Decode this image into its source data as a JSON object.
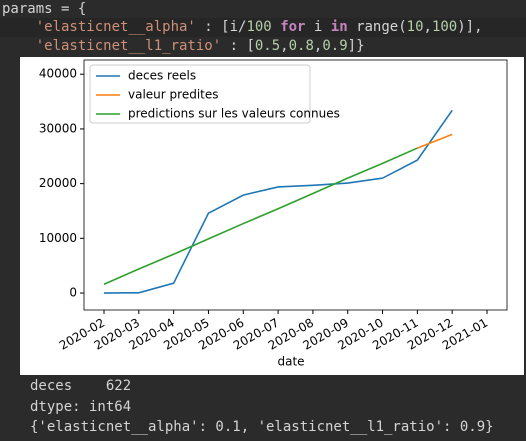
{
  "code": [
    "params = {",
    "    'elasticnet__alpha' : [i/100 for i in range(10,100)],",
    "    'elasticnet__l1_ratio' : [0.5,0.8,0.9]}"
  ],
  "chart_data": {
    "type": "line",
    "xlabel": "date",
    "x": [
      "2020-02",
      "2020-03",
      "2020-04",
      "2020-05",
      "2020-06",
      "2020-07",
      "2020-08",
      "2020-09",
      "2020-10",
      "2020-11",
      "2020-12"
    ],
    "series": [
      {
        "name": "deces reels",
        "color": "#1f77b4",
        "values": [
          0,
          50,
          1800,
          14600,
          17900,
          19400,
          19700,
          20100,
          21000,
          24300,
          33400
        ]
      },
      {
        "name": "valeur predites",
        "color": "#ff7f0e",
        "values": [
          null,
          null,
          null,
          null,
          null,
          null,
          null,
          null,
          null,
          26500,
          29000
        ]
      },
      {
        "name": "predictions sur les valeurs connues",
        "color": "#2ca02c",
        "values": [
          1600,
          4400,
          7100,
          9900,
          12700,
          15400,
          18200,
          21000,
          23700,
          26500,
          null
        ]
      }
    ],
    "xticks": [
      "2020-02",
      "2020-03",
      "2020-04",
      "2020-05",
      "2020-06",
      "2020-07",
      "2020-08",
      "2020-09",
      "2020-10",
      "2020-11",
      "2020-12",
      "2021-01"
    ],
    "ylim": [
      -3100,
      42600
    ],
    "yticks": [
      0,
      10000,
      20000,
      30000,
      40000
    ],
    "legend": "upper left"
  },
  "output": [
    "deces    622",
    "dtype: int64",
    "{'elasticnet__alpha': 0.1, 'elasticnet__l1_ratio': 0.9}"
  ]
}
